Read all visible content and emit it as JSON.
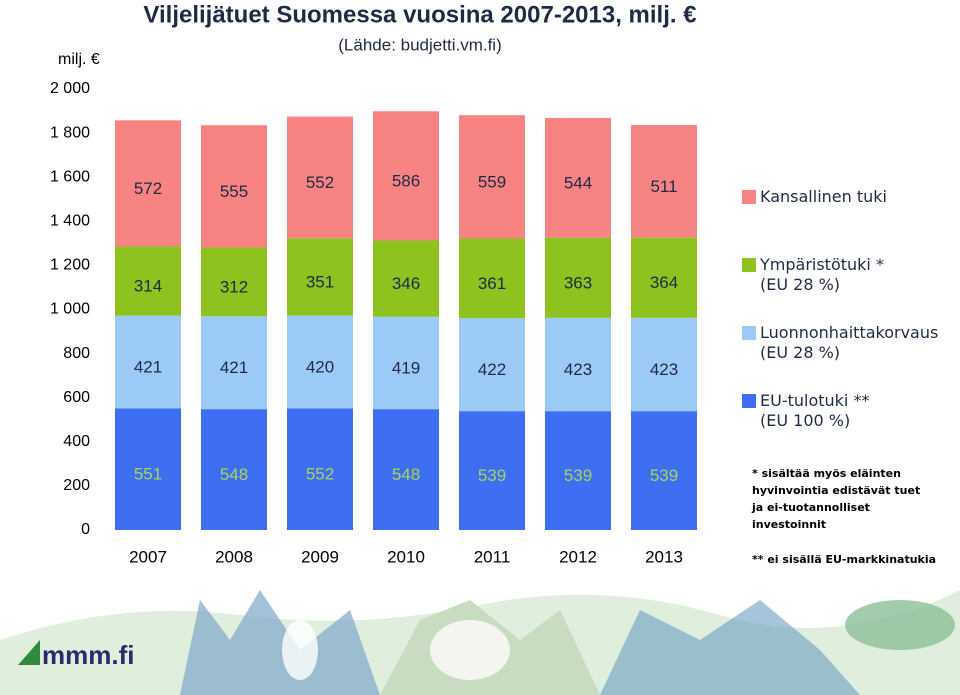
{
  "chart_data": {
    "type": "stacked_bar",
    "title": "Viljelijätuet Suomessa vuosina 2007-2013, milj. €",
    "subtitle": "(Lähde: budjetti.vm.fi)",
    "y_label": "milj. €",
    "categories": [
      "2007",
      "2008",
      "2009",
      "2010",
      "2011",
      "2012",
      "2013"
    ],
    "series": [
      {
        "name": "EU-tulotuki **\n(EU 100 %)",
        "color": "#3e6ef2",
        "label_color": "#a6d45a",
        "values": [
          551,
          548,
          552,
          548,
          539,
          539,
          539
        ]
      },
      {
        "name": "Luonnonhaittakorvaus\n(EU 28 %)",
        "color": "#9ccaf7",
        "label_color": "#1f2a44",
        "values": [
          421,
          421,
          420,
          419,
          422,
          423,
          423
        ]
      },
      {
        "name": "Ympäristötuki *\n(EU 28 %)",
        "color": "#8dc21f",
        "label_color": "#1f2a44",
        "values": [
          314,
          312,
          351,
          346,
          361,
          363,
          364
        ]
      },
      {
        "name": "Kansallinen tuki",
        "color": "#f88383",
        "label_color": "#1f2a44",
        "values": [
          572,
          555,
          552,
          586,
          559,
          544,
          511
        ]
      }
    ],
    "ylim": [
      0,
      2000
    ],
    "yticks": [
      0,
      200,
      400,
      600,
      800,
      {
        "value": 1000,
        "label": "1 000"
      },
      {
        "value": 1200,
        "label": "1 200"
      },
      {
        "value": 1400,
        "label": "1 400"
      },
      {
        "value": 1600,
        "label": "1 600"
      },
      {
        "value": 1800,
        "label": "1 800"
      },
      {
        "value": 2000,
        "label": "2 000"
      }
    ],
    "grid": false,
    "footnotes": [
      "* sisältää myös eläinten\nhyvinvointia edistävät tuet\nja ei-tuotannolliset\ninvestoinnit",
      "** ei sisällä EU-markkinatukia"
    ],
    "logo": "mmm.fi"
  }
}
